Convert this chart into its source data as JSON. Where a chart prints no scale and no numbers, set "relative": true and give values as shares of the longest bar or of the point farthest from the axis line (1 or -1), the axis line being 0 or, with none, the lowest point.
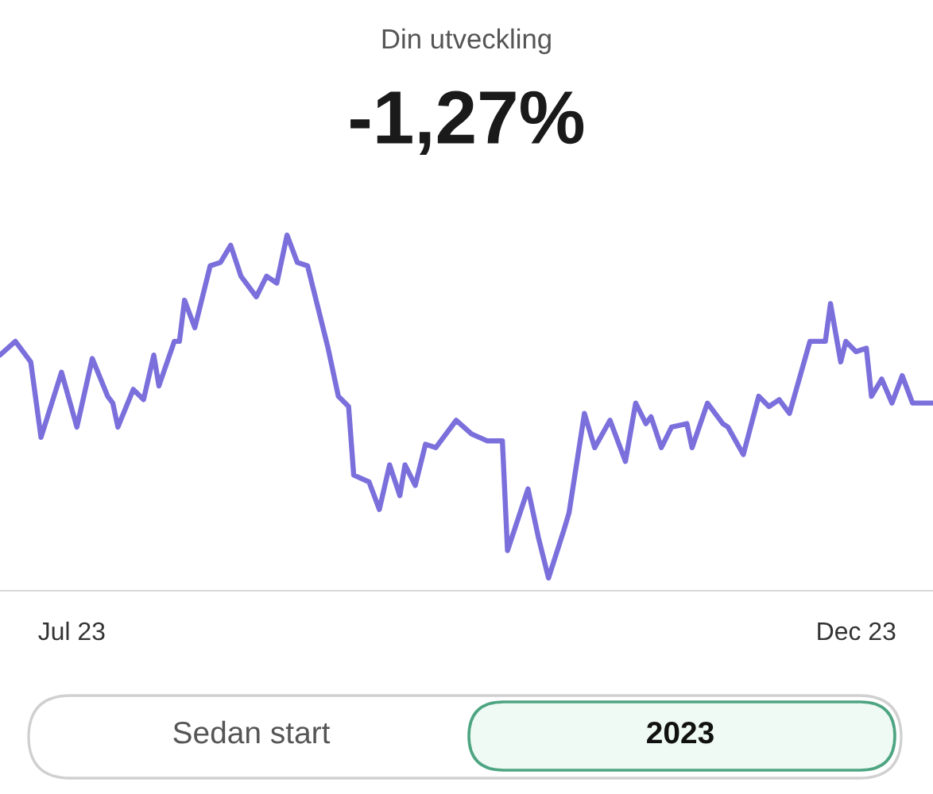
{
  "chart_data": {
    "type": "line",
    "title": "Din utveckling",
    "subtitle": "-1,27%",
    "relative": true,
    "x": [
      "2023-06-17",
      "2023-06-20",
      "2023-06-23",
      "2023-06-25",
      "2023-06-29",
      "2023-07-02",
      "2023-07-05",
      "2023-07-08",
      "2023-07-09",
      "2023-07-10",
      "2023-07-13",
      "2023-07-15",
      "2023-07-17",
      "2023-07-18",
      "2023-07-21",
      "2023-07-22",
      "2023-07-23",
      "2023-07-25",
      "2023-07-28",
      "2023-07-30",
      "2023-08-01",
      "2023-08-03",
      "2023-08-06",
      "2023-08-08",
      "2023-08-10",
      "2023-08-12",
      "2023-08-14",
      "2023-08-16",
      "2023-08-20",
      "2023-08-22",
      "2023-08-24",
      "2023-08-25",
      "2023-08-28",
      "2023-08-30",
      "2023-09-01",
      "2023-09-03",
      "2023-09-04",
      "2023-09-06",
      "2023-09-08",
      "2023-09-10",
      "2023-09-14",
      "2023-09-17",
      "2023-09-20",
      "2023-09-23",
      "2023-09-24",
      "2023-09-28",
      "2023-09-30",
      "2023-10-02",
      "2023-10-05",
      "2023-10-06",
      "2023-10-09",
      "2023-10-11",
      "2023-10-14",
      "2023-10-17",
      "2023-10-19",
      "2023-10-21",
      "2023-10-22",
      "2023-10-24",
      "2023-10-26",
      "2023-10-29",
      "2023-10-30",
      "2023-11-02",
      "2023-11-05",
      "2023-11-06",
      "2023-11-09",
      "2023-11-12",
      "2023-11-14",
      "2023-11-16",
      "2023-11-18",
      "2023-11-22",
      "2023-11-25",
      "2023-11-26",
      "2023-11-28",
      "2023-11-29",
      "2023-12-01",
      "2023-12-03",
      "2023-12-04",
      "2023-12-06",
      "2023-12-08",
      "2023-12-10",
      "2023-12-12",
      "2023-12-16"
    ],
    "series": [
      {
        "color": "#7b6fdc",
        "values": [
          0.65,
          0.69,
          0.63,
          0.41,
          0.6,
          0.44,
          0.64,
          0.53,
          0.51,
          0.44,
          0.55,
          0.52,
          0.65,
          0.56,
          0.69,
          0.69,
          0.81,
          0.73,
          0.91,
          0.92,
          0.97,
          0.88,
          0.82,
          0.88,
          0.86,
          1,
          0.92,
          0.91,
          0.67,
          0.53,
          0.5,
          0.3,
          0.28,
          0.2,
          0.33,
          0.24,
          0.33,
          0.27,
          0.39,
          0.38,
          0.46,
          0.42,
          0.4,
          0.4,
          0.08,
          0.26,
          0.12,
          0,
          0.14,
          0.19,
          0.48,
          0.38,
          0.46,
          0.34,
          0.51,
          0.45,
          0.47,
          0.38,
          0.44,
          0.45,
          0.38,
          0.51,
          0.45,
          0.44,
          0.36,
          0.53,
          0.5,
          0.52,
          0.48,
          0.69,
          0.69,
          0.8,
          0.63,
          0.69,
          0.66,
          0.67,
          0.53,
          0.58,
          0.51,
          0.59,
          0.51,
          0.51
        ]
      }
    ],
    "xlim": [
      "2023-06-17",
      "2023-12-16"
    ],
    "xticks": [
      {
        "value": "2023-07-01",
        "label": "Jul 23"
      },
      {
        "value": "2023-12-01",
        "label": "Dec 23"
      }
    ],
    "grid": false,
    "legend": false,
    "annotations": [
      "Sedan start",
      "2023"
    ]
  }
}
